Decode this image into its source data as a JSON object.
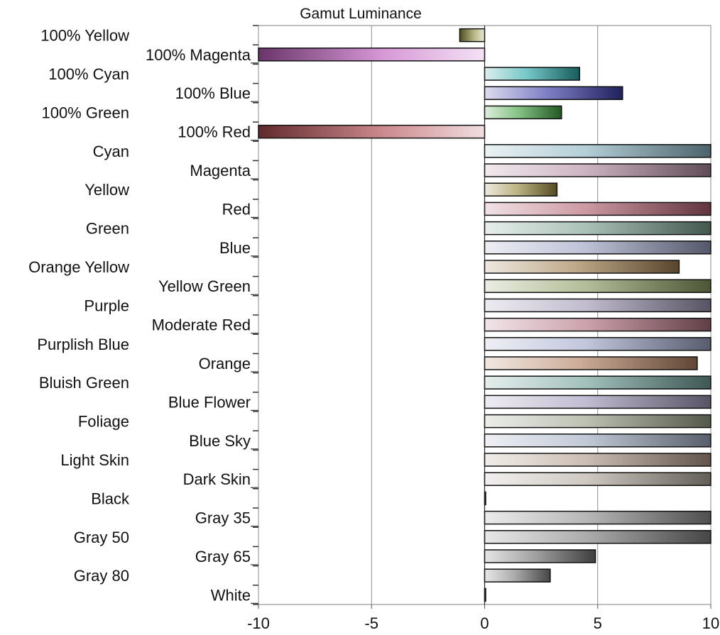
{
  "chart_data": {
    "type": "bar",
    "orientation": "horizontal",
    "title": "Gamut Luminance",
    "xlabel": "",
    "ylabel": "",
    "xlim": [
      -10,
      10
    ],
    "xticks": [
      -10,
      -5,
      0,
      5,
      10
    ],
    "xtick_labels": [
      "-10",
      "-5",
      "0",
      "5",
      "10"
    ],
    "grid": "vertical",
    "legend": "none",
    "categories": [
      "100% Yellow",
      "100% Magenta",
      "100% Cyan",
      "100% Blue",
      "100% Green",
      "100% Red",
      "Cyan",
      "Magenta",
      "Yellow",
      "Red",
      "Green",
      "Blue",
      "Orange Yellow",
      "Yellow Green",
      "Purple",
      "Moderate Red",
      "Purplish Blue",
      "Orange",
      "Bluish Green",
      "Blue Flower",
      "Foliage",
      "Blue Sky",
      "Light Skin",
      "Dark Skin",
      "Black",
      "Gray 35",
      "Gray 50",
      "Gray 65",
      "Gray 80",
      "White"
    ],
    "values": [
      -1.1,
      -10,
      4.2,
      6.1,
      3.4,
      -10,
      10,
      10,
      3.2,
      10,
      10,
      10,
      8.6,
      10,
      10,
      10,
      10,
      9.4,
      10,
      10,
      10,
      10,
      10,
      10,
      0,
      10,
      10,
      4.9,
      2.9,
      0
    ],
    "colors": [
      "#8a8a3a",
      "#c060c0",
      "#2aa8a8",
      "#3a3aa8",
      "#40a040",
      "#b04a50",
      "#8ab4c0",
      "#b08aa0",
      "#9a8a40",
      "#b06070",
      "#7aa090",
      "#9aa0c0",
      "#a08050",
      "#8a9a60",
      "#a098b4",
      "#b07080",
      "#a0a8c8",
      "#b08060",
      "#70a098",
      "#a098b8",
      "#98a088",
      "#a0acc0",
      "#b09a8a",
      "#b4aca0",
      "#808080",
      "#909090",
      "#808080",
      "#707070",
      "#808080",
      "#909090"
    ]
  }
}
